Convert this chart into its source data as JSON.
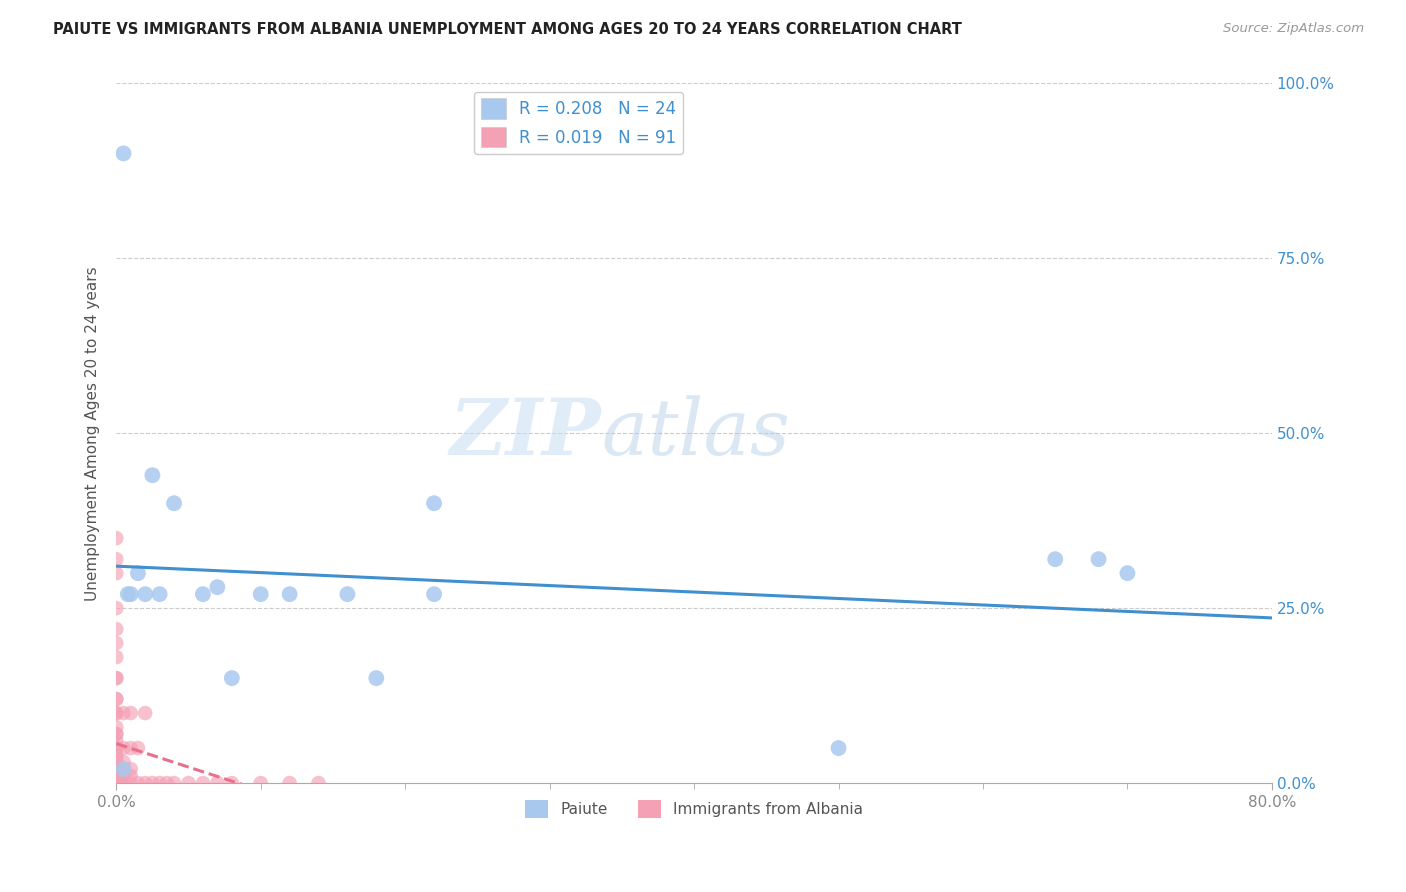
{
  "title": "PAIUTE VS IMMIGRANTS FROM ALBANIA UNEMPLOYMENT AMONG AGES 20 TO 24 YEARS CORRELATION CHART",
  "source": "Source: ZipAtlas.com",
  "ylabel": "Unemployment Among Ages 20 to 24 years",
  "xlim": [
    0.0,
    0.8
  ],
  "ylim": [
    0.0,
    1.0
  ],
  "xtick_labels_ends": [
    "0.0%",
    "80.0%"
  ],
  "xtick_values_ends": [
    0.0,
    0.8
  ],
  "ytick_labels": [
    "0.0%",
    "25.0%",
    "50.0%",
    "75.0%",
    "100.0%"
  ],
  "ytick_values": [
    0.0,
    0.25,
    0.5,
    0.75,
    1.0
  ],
  "paiute_R": 0.208,
  "paiute_N": 24,
  "albania_R": 0.019,
  "albania_N": 91,
  "paiute_color": "#A8C8EE",
  "albania_color": "#F4A0B5",
  "paiute_line_color": "#4090D0",
  "albania_line_color": "#E8708A",
  "legend_label_paiute": "Paiute",
  "legend_label_albania": "Immigrants from Albania",
  "background_color": "#ffffff",
  "watermark_zip": "ZIP",
  "watermark_atlas": "atlas",
  "paiute_x": [
    0.005,
    0.005,
    0.008,
    0.01,
    0.015,
    0.02,
    0.025,
    0.03,
    0.04,
    0.06,
    0.07,
    0.08,
    0.1,
    0.12,
    0.16,
    0.18,
    0.22,
    0.22,
    0.5,
    0.65,
    0.68,
    0.7
  ],
  "paiute_y": [
    0.02,
    0.9,
    0.27,
    0.27,
    0.3,
    0.27,
    0.44,
    0.27,
    0.4,
    0.27,
    0.28,
    0.15,
    0.27,
    0.27,
    0.27,
    0.15,
    0.27,
    0.4,
    0.05,
    0.32,
    0.32,
    0.3
  ],
  "albania_x": [
    0.0,
    0.0,
    0.0,
    0.0,
    0.0,
    0.0,
    0.0,
    0.0,
    0.0,
    0.0,
    0.0,
    0.0,
    0.0,
    0.0,
    0.0,
    0.0,
    0.0,
    0.0,
    0.0,
    0.0,
    0.0,
    0.0,
    0.0,
    0.0,
    0.0,
    0.0,
    0.0,
    0.0,
    0.0,
    0.0,
    0.0,
    0.0,
    0.0,
    0.0,
    0.0,
    0.0,
    0.0,
    0.0,
    0.0,
    0.0,
    0.0,
    0.0,
    0.0,
    0.0,
    0.0,
    0.0,
    0.0,
    0.0,
    0.0,
    0.0,
    0.0,
    0.005,
    0.005,
    0.005,
    0.005,
    0.005,
    0.005,
    0.005,
    0.01,
    0.01,
    0.01,
    0.01,
    0.01,
    0.015,
    0.015,
    0.02,
    0.02,
    0.025,
    0.03,
    0.035,
    0.04,
    0.05,
    0.06,
    0.07,
    0.08,
    0.1,
    0.12,
    0.14
  ],
  "albania_y": [
    0.0,
    0.0,
    0.0,
    0.0,
    0.0,
    0.0,
    0.0,
    0.0,
    0.0,
    0.0,
    0.0,
    0.0,
    0.0,
    0.0,
    0.0,
    0.0,
    0.0,
    0.0,
    0.005,
    0.005,
    0.01,
    0.01,
    0.01,
    0.015,
    0.02,
    0.02,
    0.025,
    0.03,
    0.03,
    0.035,
    0.04,
    0.05,
    0.05,
    0.06,
    0.07,
    0.08,
    0.1,
    0.12,
    0.15,
    0.2,
    0.22,
    0.25,
    0.3,
    0.32,
    0.35,
    0.05,
    0.07,
    0.1,
    0.12,
    0.15,
    0.18,
    0.0,
    0.005,
    0.01,
    0.02,
    0.03,
    0.05,
    0.1,
    0.0,
    0.01,
    0.02,
    0.05,
    0.1,
    0.0,
    0.05,
    0.0,
    0.1,
    0.0,
    0.0,
    0.0,
    0.0,
    0.0,
    0.0,
    0.0,
    0.0,
    0.0,
    0.0,
    0.0
  ],
  "grid_color": "#cccccc",
  "tick_color_right": "#4090D0",
  "tick_color_bottom": "#888888"
}
